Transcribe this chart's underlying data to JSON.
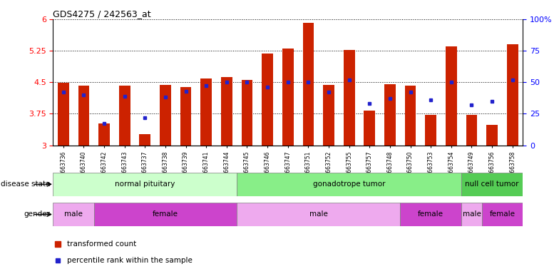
{
  "title": "GDS4275 / 242563_at",
  "samples": [
    "GSM663736",
    "GSM663740",
    "GSM663742",
    "GSM663743",
    "GSM663737",
    "GSM663738",
    "GSM663739",
    "GSM663741",
    "GSM663744",
    "GSM663745",
    "GSM663746",
    "GSM663747",
    "GSM663751",
    "GSM663752",
    "GSM663755",
    "GSM663757",
    "GSM663748",
    "GSM663750",
    "GSM663753",
    "GSM663754",
    "GSM663749",
    "GSM663756",
    "GSM663758"
  ],
  "transformed_count": [
    4.48,
    4.42,
    3.52,
    4.42,
    3.27,
    4.44,
    4.38,
    4.58,
    4.62,
    4.56,
    5.18,
    5.3,
    5.92,
    4.44,
    5.26,
    3.83,
    4.46,
    4.42,
    3.73,
    5.36,
    3.73,
    3.48,
    5.4
  ],
  "percentile_rank": [
    42,
    40,
    17,
    39,
    22,
    38,
    43,
    47,
    50,
    50,
    46,
    50,
    50,
    42,
    52,
    33,
    37,
    42,
    36,
    50,
    32,
    35,
    52
  ],
  "ylim_left": [
    3,
    6
  ],
  "ylim_right": [
    0,
    100
  ],
  "yticks_left": [
    3,
    3.75,
    4.5,
    5.25,
    6
  ],
  "yticks_right": [
    0,
    25,
    50,
    75,
    100
  ],
  "bar_color": "#cc2200",
  "dot_color": "#2222cc",
  "disease_state_groups": [
    {
      "label": "normal pituitary",
      "start": 0,
      "end": 9,
      "color": "#ccffcc"
    },
    {
      "label": "gonadotrope tumor",
      "start": 9,
      "end": 20,
      "color": "#88ee88"
    },
    {
      "label": "null cell tumor",
      "start": 20,
      "end": 23,
      "color": "#55cc55"
    }
  ],
  "gender_groups": [
    {
      "label": "male",
      "start": 0,
      "end": 2,
      "color": "#eeaaee"
    },
    {
      "label": "female",
      "start": 2,
      "end": 9,
      "color": "#cc44cc"
    },
    {
      "label": "male",
      "start": 9,
      "end": 17,
      "color": "#eeaaee"
    },
    {
      "label": "female",
      "start": 17,
      "end": 20,
      "color": "#cc44cc"
    },
    {
      "label": "male",
      "start": 20,
      "end": 21,
      "color": "#eeaaee"
    },
    {
      "label": "female",
      "start": 21,
      "end": 23,
      "color": "#cc44cc"
    }
  ],
  "row_label_disease": "disease state",
  "row_label_gender": "gender",
  "legend_bar": "transformed count",
  "legend_dot": "percentile rank within the sample",
  "bg_color": "#f0f0f0"
}
